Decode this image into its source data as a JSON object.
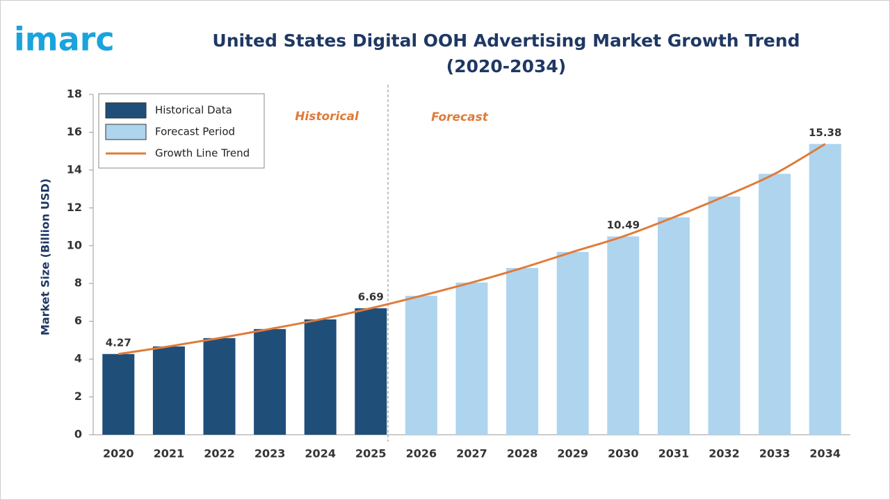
{
  "logo": "imarc",
  "chart_data": {
    "type": "bar",
    "title": "United States Digital OOH Advertising Market Growth Trend",
    "subtitle": "(2020-2034)",
    "y_label": "Market Size (Billion USD)",
    "annotations": [
      "Historical",
      "Forecast"
    ],
    "categories": [
      "2020",
      "2021",
      "2022",
      "2023",
      "2024",
      "2025",
      "2026",
      "2027",
      "2028",
      "2029",
      "2030",
      "2031",
      "2032",
      "2033",
      "2034"
    ],
    "series": [
      {
        "name": "Historical Data",
        "color": "#1f4e79",
        "values": [
          4.27,
          4.67,
          5.11,
          5.59,
          6.1,
          6.69,
          null,
          null,
          null,
          null,
          null,
          null,
          null,
          null,
          null
        ],
        "value_labels": [
          "4.27",
          null,
          null,
          null,
          null,
          "6.69",
          null,
          null,
          null,
          null,
          null,
          null,
          null,
          null,
          null
        ]
      },
      {
        "name": "Forecast Period",
        "color": "#aed4ee",
        "values": [
          null,
          null,
          null,
          null,
          null,
          null,
          7.35,
          8.05,
          8.82,
          9.67,
          10.49,
          11.5,
          12.6,
          13.8,
          15.38
        ],
        "value_labels": [
          null,
          null,
          null,
          null,
          null,
          null,
          null,
          null,
          null,
          null,
          "10.49",
          null,
          null,
          null,
          "15.38"
        ]
      },
      {
        "name": "Growth Line Trend",
        "color": "#e07b39",
        "type": "line",
        "values": [
          4.27,
          4.67,
          5.11,
          5.59,
          6.1,
          6.69,
          7.35,
          8.05,
          8.82,
          9.67,
          10.49,
          11.5,
          12.6,
          13.8,
          15.38
        ]
      }
    ],
    "ylim": [
      0,
      18
    ],
    "yticks": [
      0,
      2,
      4,
      6,
      8,
      10,
      12,
      14,
      16,
      18
    ],
    "grid": false
  }
}
